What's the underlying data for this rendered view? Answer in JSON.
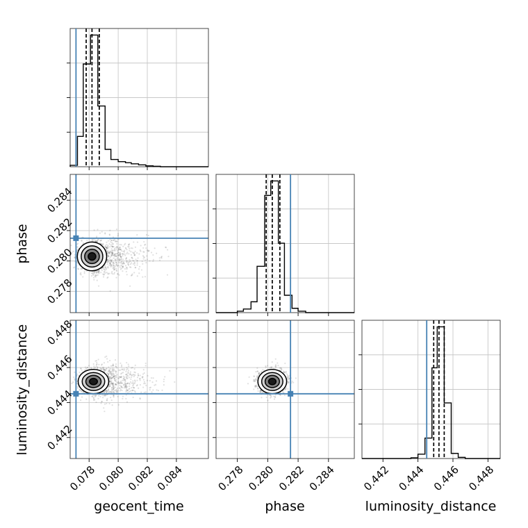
{
  "chart_data": {
    "type": "corner",
    "parameters": [
      {
        "name": "geocent_time",
        "label": "geocent_time",
        "range": [
          0.0767,
          0.0862
        ],
        "ticks": [
          "0.078",
          "0.080",
          "0.082",
          "0.084"
        ],
        "truth": 0.0771,
        "quantiles": [
          0.0778,
          0.0782,
          0.0787
        ]
      },
      {
        "name": "phase",
        "label": "phase",
        "range": [
          0.2766,
          0.2857
        ],
        "ticks": [
          "0.278",
          "0.280",
          "0.282",
          "0.284"
        ],
        "truth": 0.2815,
        "quantiles": [
          0.2799,
          0.2803,
          0.2808
        ]
      },
      {
        "name": "luminosity_distance",
        "label": "luminosity_distance",
        "range": [
          0.4408,
          0.4487
        ],
        "ticks": [
          "0.442",
          "0.444",
          "0.446",
          "0.448"
        ],
        "truth": 0.4445,
        "quantiles": [
          0.4449,
          0.4452,
          0.4455
        ]
      }
    ],
    "truth_color": "#4682b4",
    "histograms": [
      {
        "parameter": "geocent_time",
        "bin_edges": [
          0.0767,
          0.0772,
          0.0776,
          0.0781,
          0.0786,
          0.0791,
          0.0795,
          0.08,
          0.0805,
          0.0809,
          0.0814,
          0.0819,
          0.0824,
          0.0829,
          0.0833,
          0.0838,
          0.0843,
          0.0848,
          0.0853,
          0.0857,
          0.0862
        ],
        "counts": [
          0.01,
          0.21,
          0.71,
          0.91,
          0.42,
          0.12,
          0.05,
          0.035,
          0.028,
          0.02,
          0.013,
          0.006,
          0.003,
          0,
          0,
          0,
          0,
          0,
          0,
          0
        ]
      },
      {
        "parameter": "phase",
        "bin_edges": [
          0.2766,
          0.2771,
          0.2775,
          0.278,
          0.2784,
          0.2789,
          0.2793,
          0.2798,
          0.2802,
          0.2807,
          0.2811,
          0.2816,
          0.282,
          0.2825,
          0.2829,
          0.2834,
          0.2839,
          0.2843,
          0.2848,
          0.2852,
          0.2857
        ],
        "counts": [
          0,
          0,
          0,
          0.01,
          0.025,
          0.075,
          0.32,
          0.81,
          0.91,
          0.48,
          0.12,
          0.03,
          0.01,
          0,
          0,
          0,
          0,
          0,
          0,
          0
        ]
      },
      {
        "parameter": "luminosity_distance",
        "bin_edges": [
          0.4408,
          0.4412,
          0.4416,
          0.442,
          0.4424,
          0.4428,
          0.4432,
          0.4436,
          0.444,
          0.4444,
          0.4448,
          0.4451,
          0.4455,
          0.4459,
          0.4463,
          0.4467,
          0.4471,
          0.4475,
          0.4479,
          0.4483,
          0.4487
        ],
        "counts": [
          0,
          0,
          0,
          0,
          0,
          0,
          0,
          0.005,
          0.03,
          0.14,
          0.62,
          0.9,
          0.38,
          0.035,
          0.008,
          0,
          0,
          0,
          0,
          0
        ]
      }
    ],
    "scatter_panels": [
      {
        "x": "geocent_time",
        "y": "phase",
        "peak": [
          0.0782,
          0.2803
        ],
        "spread": [
          0.00048,
          0.00045
        ],
        "tail_direction": "x"
      },
      {
        "x": "geocent_time",
        "y": "luminosity_distance",
        "peak": [
          0.0783,
          0.4452
        ],
        "spread": [
          0.0005,
          0.00033
        ],
        "tail_direction": "x"
      },
      {
        "x": "phase",
        "y": "luminosity_distance",
        "peak": [
          0.2803,
          0.4452
        ],
        "spread": [
          0.00045,
          0.00033
        ],
        "tail_direction": "none"
      }
    ],
    "grid": true
  }
}
